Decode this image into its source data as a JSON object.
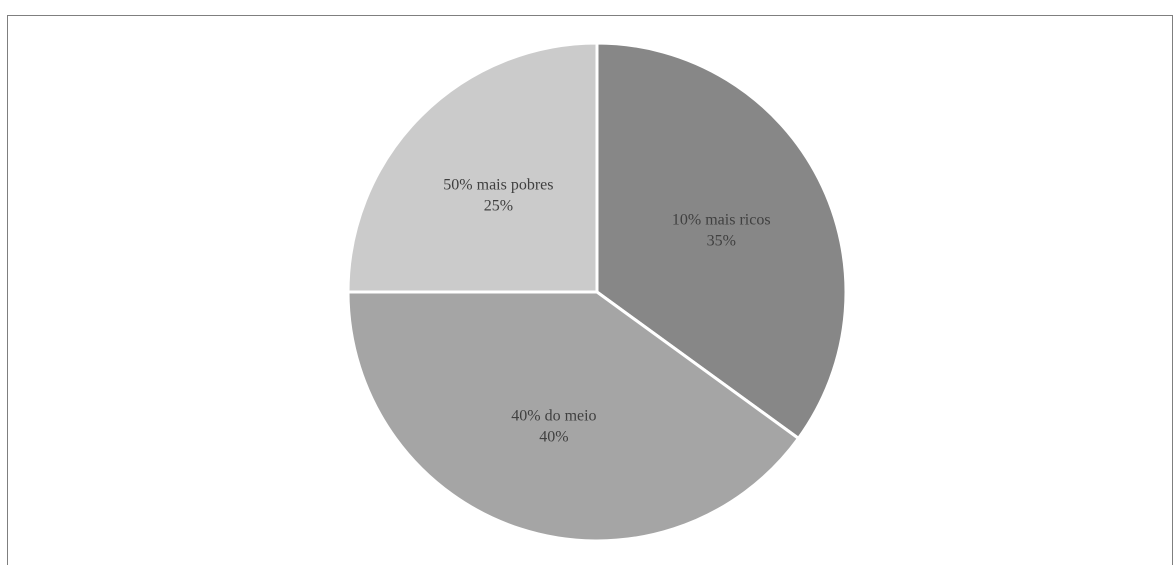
{
  "chart_data": {
    "type": "pie",
    "title": "",
    "slices": [
      {
        "label": "10% mais ricos",
        "value": 35,
        "value_label": "35%",
        "color": "#878787"
      },
      {
        "label": "40% do meio",
        "value": 40,
        "value_label": "40%",
        "color": "#a5a5a5"
      },
      {
        "label": "50% mais pobres",
        "value": 25,
        "value_label": "25%",
        "color": "#cbcbcb"
      }
    ],
    "start_angle_deg": 0,
    "direction": "clockwise",
    "legend": "none",
    "slice_border_color": "#ffffff"
  }
}
